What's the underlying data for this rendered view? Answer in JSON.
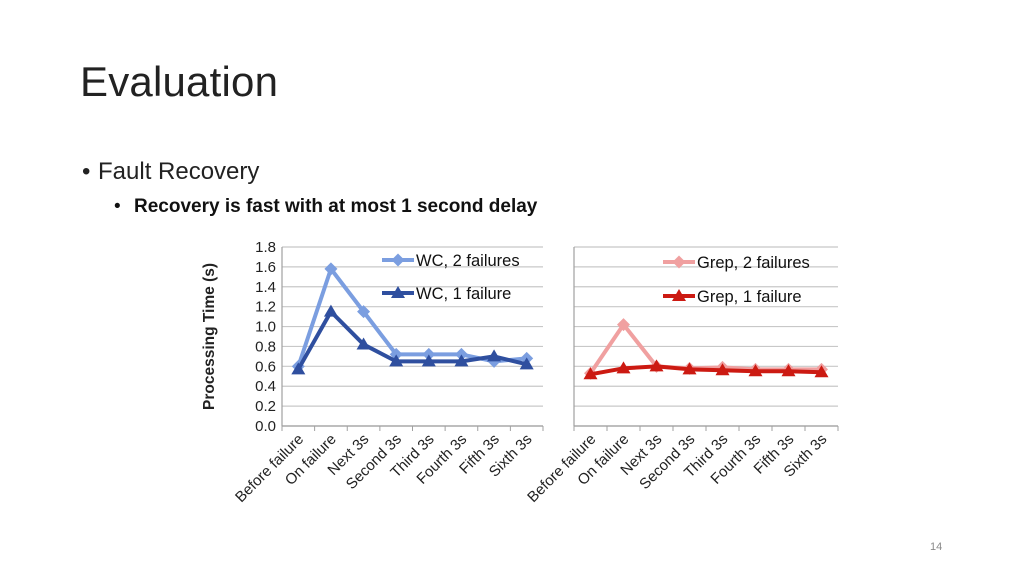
{
  "slide": {
    "title": "Evaluation",
    "bullet_1": "Fault Recovery",
    "bullet_2": "Recovery is fast with at most 1 second delay",
    "page_number": "14"
  },
  "colors": {
    "wc_2_failures": "#7b9ee0",
    "wc_1_failure": "#2f4f9f",
    "grep_2_failures": "#f0a0a0",
    "grep_1_failure": "#cc1a12",
    "grid": "#c8c8c8"
  },
  "chart_data": [
    {
      "type": "line",
      "ylabel": "Processing Time (s)",
      "ylim": [
        0,
        1.8
      ],
      "yticks": [
        "0.0",
        "0.2",
        "0.4",
        "0.6",
        "0.8",
        "1.0",
        "1.2",
        "1.4",
        "1.6",
        "1.8"
      ],
      "grid": true,
      "legend_position": "top-right",
      "categories": [
        "Before failure",
        "On failure",
        "Next 3s",
        "Second 3s",
        "Third 3s",
        "Fourth 3s",
        "Fifth 3s",
        "Sixth 3s"
      ],
      "series": [
        {
          "name": "WC, 2 failures",
          "marker": "diamond",
          "values": [
            0.6,
            1.58,
            1.15,
            0.72,
            0.72,
            0.72,
            0.65,
            0.68
          ]
        },
        {
          "name": "WC, 1 failure",
          "marker": "triangle",
          "values": [
            0.57,
            1.15,
            0.82,
            0.65,
            0.65,
            0.65,
            0.7,
            0.62
          ]
        }
      ]
    },
    {
      "type": "line",
      "ylim": [
        0,
        1.8
      ],
      "grid": true,
      "legend_position": "top-right",
      "categories": [
        "Before failure",
        "On failure",
        "Next 3s",
        "Second 3s",
        "Third 3s",
        "Fourth 3s",
        "Fifth 3s",
        "Sixth 3s"
      ],
      "series": [
        {
          "name": "Grep, 2 failures",
          "marker": "diamond",
          "values": [
            0.53,
            1.02,
            0.6,
            0.58,
            0.59,
            0.57,
            0.57,
            0.57
          ]
        },
        {
          "name": "Grep, 1 failure",
          "marker": "triangle",
          "values": [
            0.52,
            0.58,
            0.6,
            0.57,
            0.56,
            0.55,
            0.55,
            0.54
          ]
        }
      ]
    }
  ]
}
